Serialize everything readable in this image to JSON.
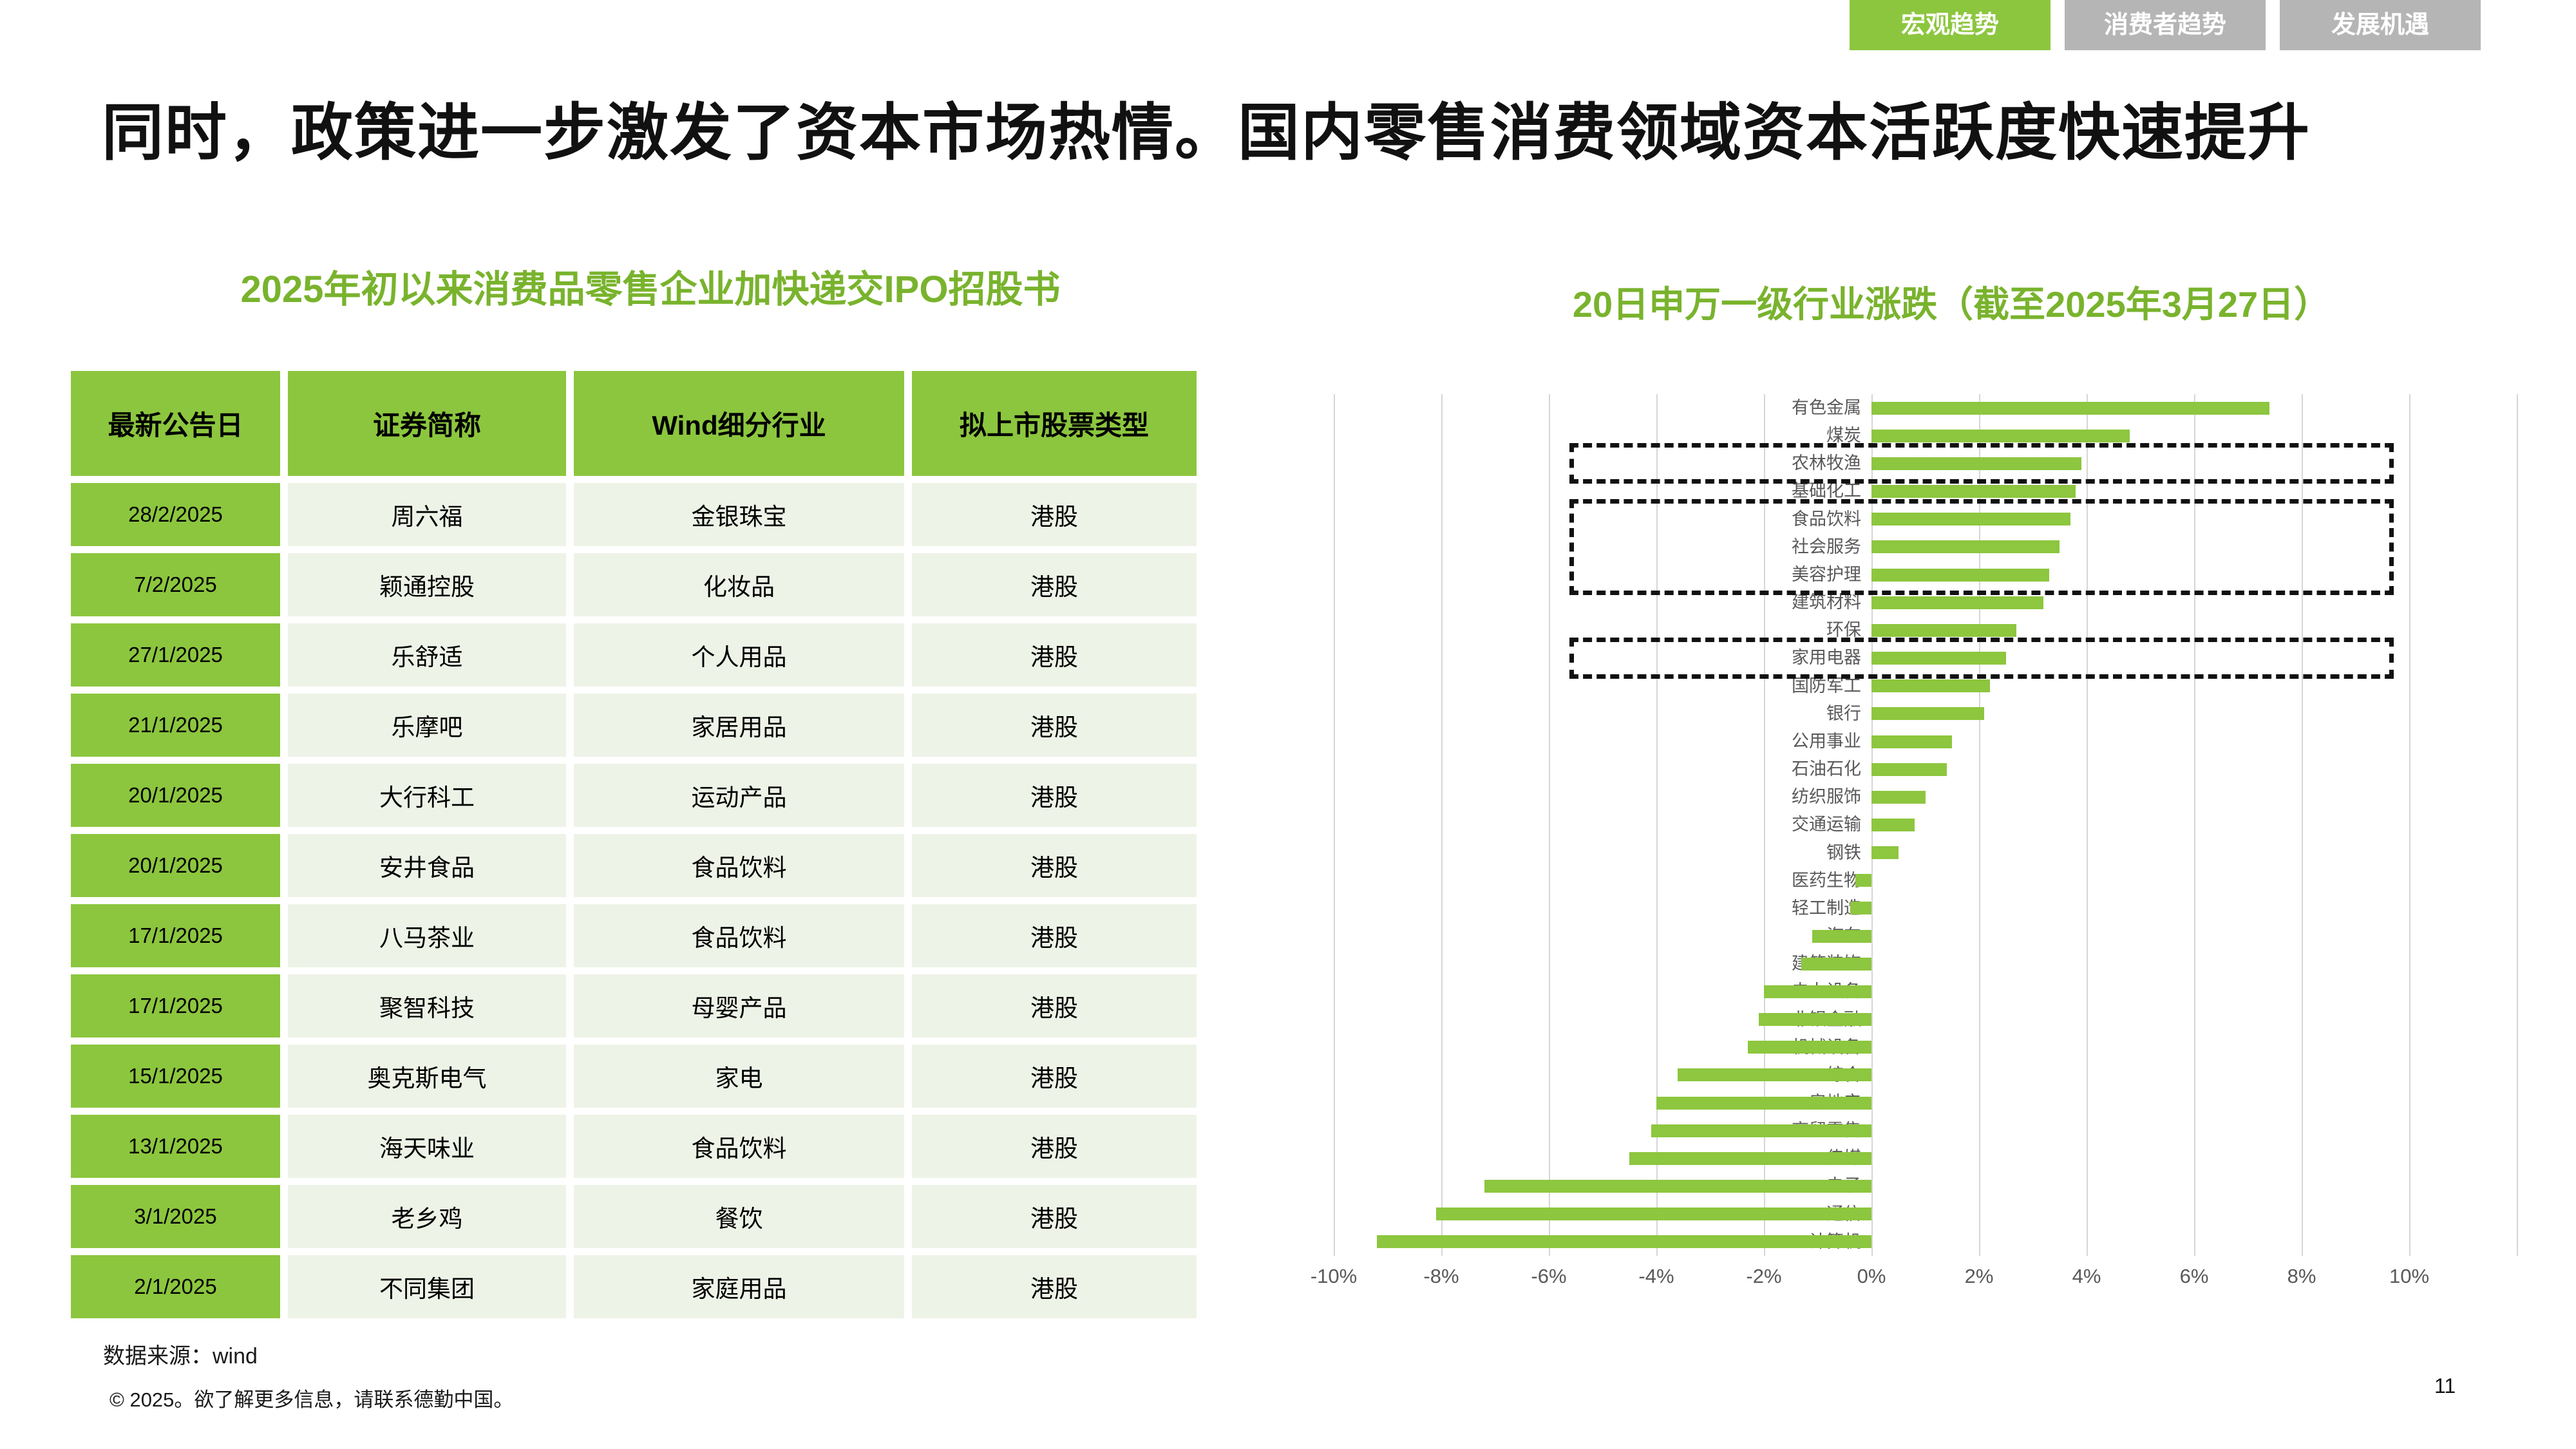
{
  "tabs": [
    {
      "label": "宏观趋势",
      "active": true
    },
    {
      "label": "消费者趋势",
      "active": false
    },
    {
      "label": "发展机遇",
      "active": false
    }
  ],
  "title": "同时，政策进一步激发了资本市场热情。国内零售消费领域资本活跃度快速提升",
  "table_section": {
    "title": "2025年初以来消费品零售企业加快递交IPO招股书",
    "columns": [
      "最新公告日",
      "证券简称",
      "Wind细分行业",
      "拟上市股票类型"
    ],
    "rows": [
      [
        "28/2/2025",
        "周六福",
        "金银珠宝",
        "港股"
      ],
      [
        "7/2/2025",
        "颖通控股",
        "化妆品",
        "港股"
      ],
      [
        "27/1/2025",
        "乐舒适",
        "个人用品",
        "港股"
      ],
      [
        "21/1/2025",
        "乐摩吧",
        "家居用品",
        "港股"
      ],
      [
        "20/1/2025",
        "大行科工",
        "运动产品",
        "港股"
      ],
      [
        "20/1/2025",
        "安井食品",
        "食品饮料",
        "港股"
      ],
      [
        "17/1/2025",
        "八马茶业",
        "食品饮料",
        "港股"
      ],
      [
        "17/1/2025",
        "聚智科技",
        "母婴产品",
        "港股"
      ],
      [
        "15/1/2025",
        "奥克斯电气",
        "家电",
        "港股"
      ],
      [
        "13/1/2025",
        "海天味业",
        "食品饮料",
        "港股"
      ],
      [
        "3/1/2025",
        "老乡鸡",
        "餐饮",
        "港股"
      ],
      [
        "2/1/2025",
        "不同集团",
        "家庭用品",
        "港股"
      ]
    ]
  },
  "chart_data": {
    "type": "bar",
    "orientation": "horizontal",
    "title": "20日申万一级行业涨跌（截至2025年3月27日）",
    "xlabel": "",
    "ylabel": "",
    "xlim": [
      -10,
      12.2
    ],
    "grid": true,
    "bar_color": "#8dc63f",
    "x_ticks": [
      -10,
      -8,
      -6,
      -4,
      -2,
      0,
      2,
      4,
      6,
      8,
      10
    ],
    "x_tick_labels": [
      "-10%",
      "-8%",
      "-6%",
      "-4%",
      "-2%",
      "0%",
      "2%",
      "4%",
      "6%",
      "8%",
      "10%"
    ],
    "categories": [
      "有色金属",
      "煤炭",
      "农林牧渔",
      "基础化工",
      "食品饮料",
      "社会服务",
      "美容护理",
      "建筑材料",
      "环保",
      "家用电器",
      "国防军工",
      "银行",
      "公用事业",
      "石油石化",
      "纺织服饰",
      "交通运输",
      "钢铁",
      "医药生物",
      "轻工制造",
      "汽车",
      "建筑装饰",
      "电力设备",
      "非银金融",
      "机械设备",
      "综合",
      "房地产",
      "商贸零售",
      "传媒",
      "电子",
      "通信",
      "计算机"
    ],
    "values": [
      7.4,
      4.8,
      3.9,
      3.8,
      3.7,
      3.5,
      3.3,
      3.2,
      2.7,
      2.5,
      2.2,
      2.1,
      1.5,
      1.4,
      1.0,
      0.8,
      0.5,
      -0.3,
      -0.4,
      -1.1,
      -1.3,
      -2.0,
      -2.1,
      -2.3,
      -3.6,
      -4.0,
      -4.1,
      -4.5,
      -7.2,
      -8.1,
      -9.2
    ],
    "highlight_boxes": [
      {
        "start_row": 2,
        "end_row": 2
      },
      {
        "start_row": 4,
        "end_row": 6
      },
      {
        "start_row": 9,
        "end_row": 9
      }
    ]
  },
  "footer": {
    "source": "数据来源：wind",
    "copyright": "© 2025。欲了解更多信息，请联系德勤中国。",
    "page_number": "11"
  }
}
